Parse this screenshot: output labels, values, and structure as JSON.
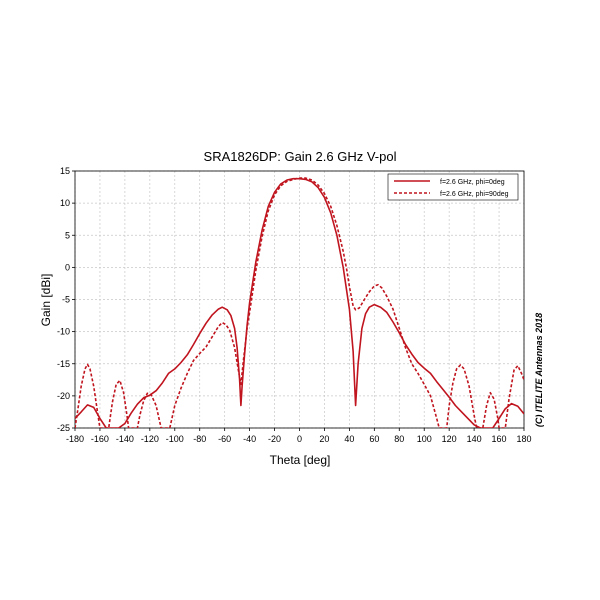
{
  "chart_data": {
    "type": "line",
    "title": "SRA1826DP: Gain 2.6 GHz V-pol",
    "xlabel": "Theta [deg]",
    "ylabel": "Gain [dBi]",
    "xlim": [
      -180,
      180
    ],
    "ylim": [
      -25,
      15
    ],
    "xticks": [
      -180,
      -160,
      -140,
      -120,
      -100,
      -80,
      -60,
      -40,
      -20,
      0,
      20,
      40,
      60,
      80,
      100,
      120,
      140,
      160,
      180
    ],
    "yticks": [
      -25,
      -20,
      -15,
      -10,
      -5,
      0,
      5,
      10,
      15
    ],
    "grid": true,
    "legend_position": "top-right",
    "copyright": "(C) ITELITE Antennas 2018",
    "colors": {
      "series": "#c0141e",
      "grid": "#c8c8c8",
      "axis": "#000000"
    },
    "series": [
      {
        "name": "f=2.6 GHz, phi=0deg",
        "style": "solid",
        "points": [
          [
            -180,
            -23.5
          ],
          [
            -175,
            -22.5
          ],
          [
            -170,
            -21.4
          ],
          [
            -165,
            -21.8
          ],
          [
            -160,
            -23.5
          ],
          [
            -155,
            -25
          ],
          [
            -145,
            -25
          ],
          [
            -140,
            -24.3
          ],
          [
            -135,
            -22.7
          ],
          [
            -130,
            -21.3
          ],
          [
            -125,
            -20.3
          ],
          [
            -120,
            -19.9
          ],
          [
            -115,
            -19.2
          ],
          [
            -110,
            -18
          ],
          [
            -105,
            -16.5
          ],
          [
            -100,
            -15.8
          ],
          [
            -95,
            -14.8
          ],
          [
            -90,
            -13.6
          ],
          [
            -85,
            -12
          ],
          [
            -80,
            -10.3
          ],
          [
            -75,
            -8.7
          ],
          [
            -70,
            -7.4
          ],
          [
            -65,
            -6.5
          ],
          [
            -62,
            -6.2
          ],
          [
            -58,
            -6.6
          ],
          [
            -55,
            -7.5
          ],
          [
            -52,
            -9.5
          ],
          [
            -50,
            -12.5
          ],
          [
            -48,
            -17.5
          ],
          [
            -47,
            -21.5
          ],
          [
            -46,
            -18.5
          ],
          [
            -44,
            -13.5
          ],
          [
            -42,
            -9
          ],
          [
            -40,
            -5.5
          ],
          [
            -35,
            0.8
          ],
          [
            -30,
            5.8
          ],
          [
            -25,
            9.5
          ],
          [
            -20,
            11.7
          ],
          [
            -15,
            13
          ],
          [
            -10,
            13.6
          ],
          [
            -5,
            13.8
          ],
          [
            0,
            13.8
          ],
          [
            5,
            13.7
          ],
          [
            10,
            13.3
          ],
          [
            15,
            12.4
          ],
          [
            20,
            10.9
          ],
          [
            25,
            8.5
          ],
          [
            30,
            5
          ],
          [
            35,
            0
          ],
          [
            40,
            -6.5
          ],
          [
            43,
            -13
          ],
          [
            45,
            -21.5
          ],
          [
            47,
            -15
          ],
          [
            50,
            -9.5
          ],
          [
            53,
            -7.2
          ],
          [
            56,
            -6.2
          ],
          [
            60,
            -5.8
          ],
          [
            65,
            -6.2
          ],
          [
            70,
            -7
          ],
          [
            75,
            -8.5
          ],
          [
            80,
            -10.2
          ],
          [
            85,
            -12
          ],
          [
            90,
            -13.5
          ],
          [
            95,
            -14.8
          ],
          [
            100,
            -15.7
          ],
          [
            105,
            -16.5
          ],
          [
            110,
            -17.8
          ],
          [
            115,
            -19
          ],
          [
            120,
            -20.2
          ],
          [
            125,
            -21.5
          ],
          [
            130,
            -22.5
          ],
          [
            135,
            -23.5
          ],
          [
            140,
            -24.5
          ],
          [
            145,
            -25
          ],
          [
            155,
            -25
          ],
          [
            160,
            -23.5
          ],
          [
            165,
            -22
          ],
          [
            170,
            -21.2
          ],
          [
            175,
            -21.6
          ],
          [
            180,
            -22.8
          ]
        ]
      },
      {
        "name": "f=2.6 GHz, phi=90deg",
        "style": "dashed",
        "points": [
          [
            -180,
            -25
          ],
          [
            -178,
            -22.5
          ],
          [
            -175,
            -18.5
          ],
          [
            -172,
            -15.8
          ],
          [
            -170,
            -15.1
          ],
          [
            -168,
            -15.8
          ],
          [
            -165,
            -18.5
          ],
          [
            -162,
            -22.5
          ],
          [
            -160,
            -25
          ],
          [
            -153,
            -25
          ],
          [
            -150,
            -21
          ],
          [
            -147,
            -18.2
          ],
          [
            -144,
            -17.6
          ],
          [
            -141,
            -19.5
          ],
          [
            -138,
            -23.5
          ],
          [
            -137,
            -25
          ],
          [
            -130,
            -25
          ],
          [
            -128,
            -23
          ],
          [
            -125,
            -20.8
          ],
          [
            -122,
            -19.6
          ],
          [
            -119,
            -19.8
          ],
          [
            -115,
            -21.5
          ],
          [
            -111,
            -25
          ],
          [
            -104,
            -25
          ],
          [
            -100,
            -21.5
          ],
          [
            -95,
            -18.8
          ],
          [
            -90,
            -16.5
          ],
          [
            -85,
            -14.5
          ],
          [
            -80,
            -13.4
          ],
          [
            -75,
            -12.4
          ],
          [
            -70,
            -10.8
          ],
          [
            -65,
            -9.2
          ],
          [
            -62,
            -8.6
          ],
          [
            -59,
            -8.9
          ],
          [
            -56,
            -9.8
          ],
          [
            -52,
            -12.5
          ],
          [
            -49,
            -16
          ],
          [
            -47,
            -18.2
          ],
          [
            -45,
            -14.5
          ],
          [
            -42,
            -9.5
          ],
          [
            -40,
            -7
          ],
          [
            -35,
            -0.5
          ],
          [
            -30,
            4.8
          ],
          [
            -25,
            8.8
          ],
          [
            -20,
            11.3
          ],
          [
            -15,
            12.7
          ],
          [
            -10,
            13.4
          ],
          [
            -5,
            13.7
          ],
          [
            0,
            13.9
          ],
          [
            5,
            13.9
          ],
          [
            10,
            13.6
          ],
          [
            15,
            12.8
          ],
          [
            20,
            11.5
          ],
          [
            25,
            9.5
          ],
          [
            30,
            6.5
          ],
          [
            35,
            2.5
          ],
          [
            38,
            -0.5
          ],
          [
            40,
            -3
          ],
          [
            43,
            -6
          ],
          [
            45,
            -6.6
          ],
          [
            48,
            -6.3
          ],
          [
            52,
            -5
          ],
          [
            56,
            -3.8
          ],
          [
            60,
            -2.9
          ],
          [
            63,
            -2.7
          ],
          [
            66,
            -3.2
          ],
          [
            70,
            -4.5
          ],
          [
            75,
            -6.5
          ],
          [
            80,
            -9.5
          ],
          [
            85,
            -12.5
          ],
          [
            90,
            -15
          ],
          [
            95,
            -16.5
          ],
          [
            100,
            -18.2
          ],
          [
            105,
            -20
          ],
          [
            110,
            -23.5
          ],
          [
            112,
            -25
          ],
          [
            118,
            -25
          ],
          [
            120,
            -21.5
          ],
          [
            123,
            -18
          ],
          [
            126,
            -15.8
          ],
          [
            129,
            -15.2
          ],
          [
            132,
            -15.8
          ],
          [
            136,
            -18.5
          ],
          [
            140,
            -23
          ],
          [
            142,
            -25
          ],
          [
            147,
            -25
          ],
          [
            150,
            -21.5
          ],
          [
            153,
            -19.5
          ],
          [
            156,
            -20.5
          ],
          [
            159,
            -23.5
          ],
          [
            160,
            -25
          ],
          [
            165,
            -25
          ],
          [
            168,
            -20.5
          ],
          [
            172,
            -16
          ],
          [
            175,
            -15.3
          ],
          [
            178,
            -16.5
          ],
          [
            180,
            -17.5
          ]
        ]
      }
    ]
  }
}
